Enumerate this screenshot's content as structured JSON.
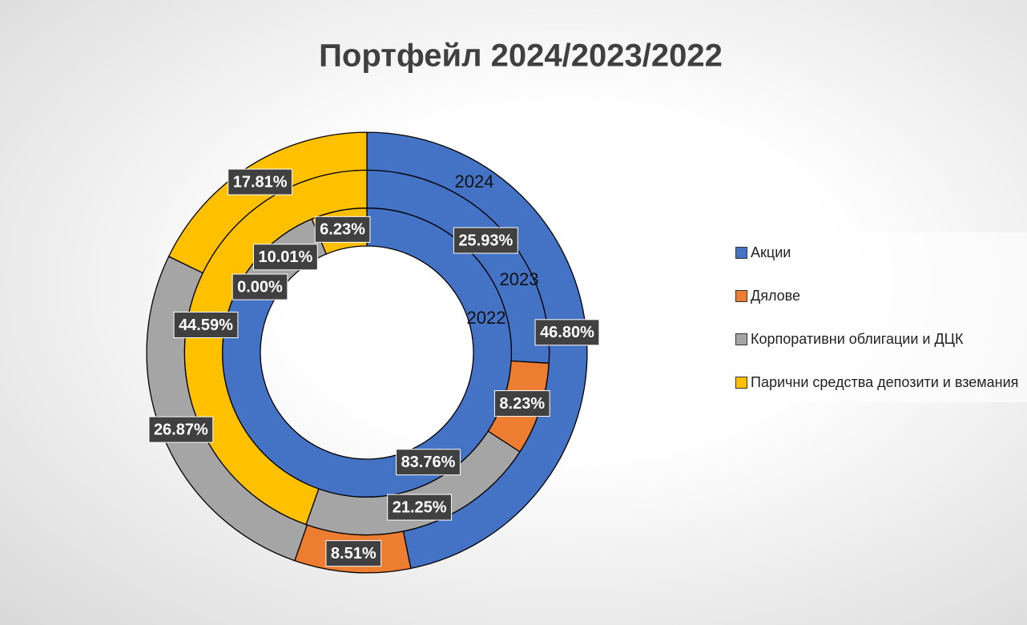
{
  "chart_data": {
    "type": "doughnut",
    "title": "Портфейл 2024/2023/2022",
    "categories": [
      "Акции",
      "Дялове",
      "Корпоративни облигации и ДЦК",
      "Парични средства депозити и вземания"
    ],
    "colors": [
      "#4472c4",
      "#ed7d31",
      "#a5a5a5",
      "#ffc000"
    ],
    "series": [
      {
        "name": "2024",
        "values": [
          46.8,
          8.51,
          26.87,
          17.81
        ],
        "value_labels": [
          "46.80%",
          "8.51%",
          "26.87%",
          "17.81%"
        ]
      },
      {
        "name": "2023",
        "values": [
          25.93,
          8.23,
          21.25,
          44.59
        ],
        "value_labels": [
          "25.93%",
          "8.23%",
          "21.25%",
          "44.59%"
        ]
      },
      {
        "name": "2022",
        "values": [
          83.76,
          0.0,
          10.01,
          6.23
        ],
        "value_labels": [
          "83.76%",
          "0.00%",
          "10.01%",
          "6.23%"
        ]
      }
    ],
    "legend": "right"
  }
}
